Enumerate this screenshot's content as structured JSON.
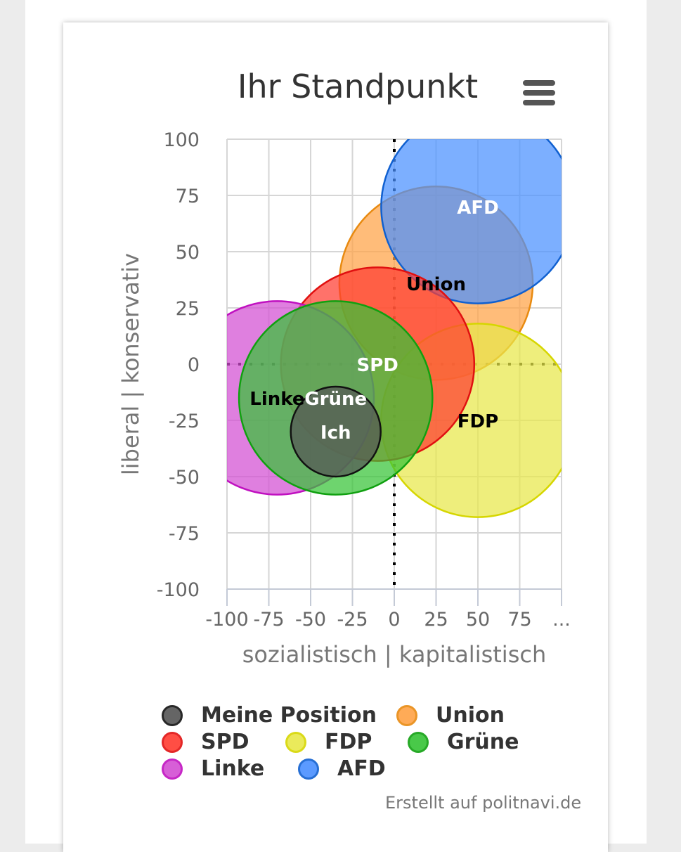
{
  "chart_data": {
    "type": "bubble",
    "title": "Ihr Standpunkt",
    "xlabel": "sozialistisch | kapitalistisch",
    "ylabel": "liberal | konservativ",
    "xlim": [
      -100,
      100
    ],
    "ylim": [
      -100,
      100
    ],
    "x_ticks": [
      "-100",
      "-75",
      "-50",
      "-25",
      "0",
      "25",
      "50",
      "75",
      "..."
    ],
    "y_ticks": [
      "100",
      "75",
      "50",
      "25",
      "0",
      "-25",
      "-50",
      "-75",
      "-100"
    ],
    "grid": true,
    "legend_position": "bottom",
    "series": [
      {
        "name": "Meine Position",
        "label": "Ich",
        "x": -35,
        "y": -30,
        "radius": 20,
        "fill": "#555555",
        "stroke": "#111111",
        "label_color": "#ffffff"
      },
      {
        "name": "Union",
        "label": "Union",
        "x": 25,
        "y": 36,
        "radius": 43,
        "fill": "#ffa245",
        "stroke": "#e88a10",
        "label_color": "#000000"
      },
      {
        "name": "SPD",
        "label": "SPD",
        "x": -10,
        "y": 0,
        "radius": 43,
        "fill": "#ff3b30",
        "stroke": "#e01010",
        "label_color": "#ffffff"
      },
      {
        "name": "FDP",
        "label": "FDP",
        "x": 50,
        "y": -25,
        "radius": 43,
        "fill": "#e8e84a",
        "stroke": "#d6d600",
        "label_color": "#000000"
      },
      {
        "name": "Grüne",
        "label": "Grüne",
        "x": -35,
        "y": -15,
        "radius": 43,
        "fill": "#36c436",
        "stroke": "#10a010",
        "label_color": "#ffffff"
      },
      {
        "name": "Linke",
        "label": "Linke",
        "x": -70,
        "y": -15,
        "radius": 43,
        "fill": "#d34ed3",
        "stroke": "#c010c0",
        "label_color": "#000000"
      },
      {
        "name": "AFD",
        "label": "AFD",
        "x": 50,
        "y": 70,
        "radius": 43,
        "fill": "#4a90ff",
        "stroke": "#1060d0",
        "label_color": "#ffffff"
      }
    ]
  },
  "legend": [
    {
      "label": "Meine Position",
      "fill": "#555555",
      "stroke": "#111111"
    },
    {
      "label": "Union",
      "fill": "#ffa245",
      "stroke": "#e88a10"
    },
    {
      "label": "SPD",
      "fill": "#ff3b30",
      "stroke": "#e01010"
    },
    {
      "label": "FDP",
      "fill": "#e8e84a",
      "stroke": "#d6d600"
    },
    {
      "label": "Grüne",
      "fill": "#36c436",
      "stroke": "#10a010"
    },
    {
      "label": "Linke",
      "fill": "#d34ed3",
      "stroke": "#c010c0"
    },
    {
      "label": "AFD",
      "fill": "#4a90ff",
      "stroke": "#1060d0"
    }
  ],
  "credits": "Erstellt auf politnavi.de",
  "icons": {
    "menu": "hamburger-menu-icon"
  }
}
